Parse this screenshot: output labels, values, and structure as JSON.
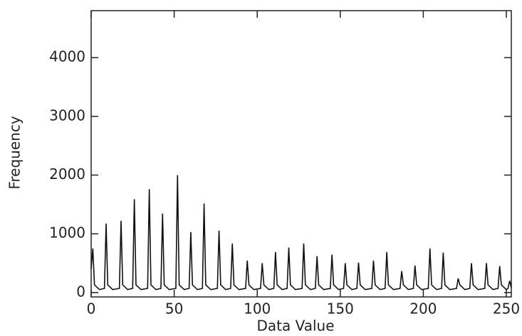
{
  "chart_data": {
    "type": "line",
    "xlabel": "Data Value",
    "ylabel": "Frequency",
    "x": [
      0,
      1,
      2,
      5,
      8,
      9,
      10,
      13,
      17,
      18,
      19,
      22,
      25,
      26,
      27,
      30,
      34,
      35,
      36,
      39,
      42,
      43,
      44,
      47,
      51,
      52,
      53,
      56,
      59,
      60,
      61,
      64,
      67,
      68,
      69,
      72,
      76,
      77,
      78,
      81,
      84,
      85,
      86,
      89,
      93,
      94,
      95,
      98,
      102,
      103,
      104,
      107,
      110,
      111,
      112,
      115,
      118,
      119,
      120,
      123,
      127,
      128,
      129,
      132,
      135,
      136,
      137,
      140,
      144,
      145,
      146,
      149,
      152,
      153,
      154,
      157,
      160,
      161,
      162,
      165,
      169,
      170,
      171,
      174,
      177,
      178,
      179,
      182,
      186,
      187,
      188,
      191,
      194,
      195,
      196,
      199,
      203,
      204,
      205,
      208,
      211,
      212,
      213,
      216,
      220,
      221,
      222,
      225,
      228,
      229,
      230,
      233,
      237,
      238,
      239,
      242,
      245,
      246,
      247,
      250,
      251,
      252,
      253
    ],
    "series": [
      {
        "color": "#111111",
        "values": [
          400,
          750,
          130,
          50,
          70,
          1175,
          130,
          50,
          70,
          1220,
          130,
          50,
          70,
          1590,
          130,
          50,
          70,
          1760,
          130,
          50,
          70,
          1345,
          130,
          50,
          70,
          2000,
          130,
          50,
          70,
          1030,
          130,
          50,
          70,
          1515,
          130,
          50,
          70,
          1055,
          130,
          50,
          70,
          835,
          130,
          50,
          70,
          545,
          130,
          50,
          70,
          500,
          130,
          50,
          70,
          690,
          130,
          50,
          70,
          765,
          130,
          50,
          70,
          835,
          130,
          50,
          70,
          620,
          130,
          50,
          70,
          645,
          130,
          50,
          70,
          500,
          130,
          50,
          70,
          510,
          130,
          50,
          70,
          545,
          130,
          50,
          70,
          690,
          130,
          50,
          70,
          365,
          130,
          50,
          70,
          460,
          130,
          50,
          70,
          750,
          130,
          50,
          70,
          680,
          130,
          50,
          70,
          240,
          130,
          50,
          70,
          500,
          130,
          50,
          70,
          500,
          130,
          50,
          70,
          450,
          130,
          50,
          70,
          200,
          80
        ]
      }
    ],
    "xlim": [
      0,
      253
    ],
    "xticks": [
      0,
      50,
      100,
      150,
      200,
      250
    ],
    "ylim": [
      -75,
      4800
    ],
    "yticks": [
      0,
      1000,
      2000,
      3000,
      4000
    ]
  }
}
